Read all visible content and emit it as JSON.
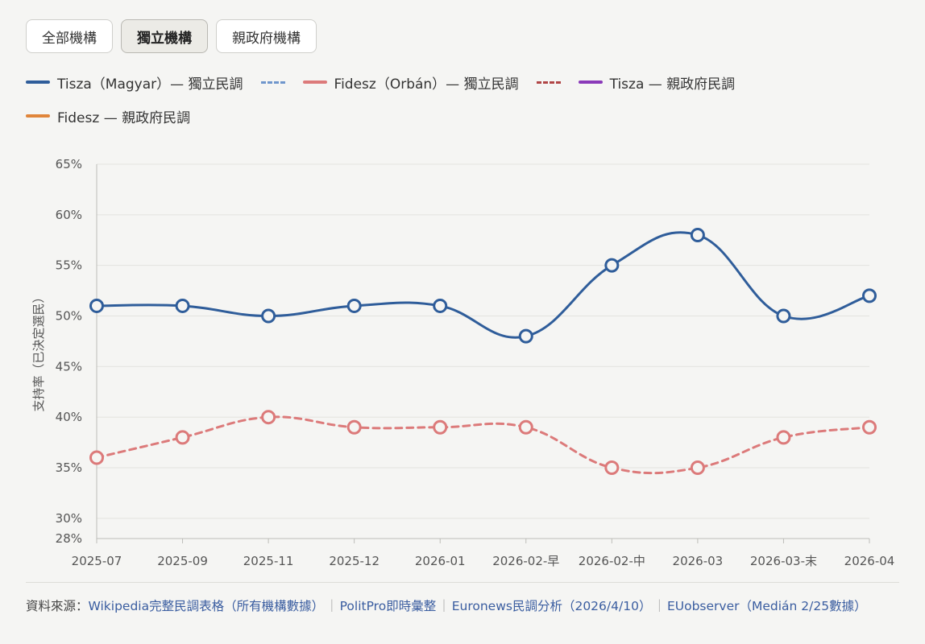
{
  "filters": {
    "all": "全部機構",
    "independent": "獨立機構",
    "pro_government": "親政府機構",
    "active": "independent"
  },
  "legend": [
    {
      "label": "Tisza（Magyar）— 獨立民調",
      "color": "#2f5d9a",
      "style": "solid"
    },
    {
      "label": "",
      "color": "#6f96cc",
      "style": "dashed"
    },
    {
      "label": "Fidesz（Orbán）— 獨立民調",
      "color": "#dc7a7a",
      "style": "solid"
    },
    {
      "label": "",
      "color": "#b04545",
      "style": "dashed"
    },
    {
      "label": "Tisza — 親政府民調",
      "color": "#8a3ab9",
      "style": "solid"
    },
    {
      "label": "Fidesz — 親政府民調",
      "color": "#e0853a",
      "style": "solid"
    }
  ],
  "chart_data": {
    "type": "line",
    "ylabel": "支持率（已決定選民）",
    "xlabel": "",
    "ylim": [
      28,
      65
    ],
    "yticks": [
      "65%",
      "60%",
      "55%",
      "50%",
      "45%",
      "40%",
      "35%",
      "30%",
      "28%"
    ],
    "ytick_values": [
      65,
      60,
      55,
      50,
      45,
      40,
      35,
      30,
      28
    ],
    "categories": [
      "2025-07",
      "2025-09",
      "2025-11",
      "2025-12",
      "2026-01",
      "2026-02-早",
      "2026-02-中",
      "2026-03",
      "2026-03-末",
      "2026-04"
    ],
    "grid": true,
    "series": [
      {
        "name": "Tisza（Magyar）— 獨立民調",
        "color": "#2f5d9a",
        "style": "solid",
        "values": [
          51,
          51,
          50,
          51,
          51,
          48,
          55,
          58,
          50,
          52
        ]
      },
      {
        "name": "Fidesz（Orbán）— 獨立民調",
        "color": "#dc7a7a",
        "style": "dashed",
        "values": [
          36,
          38,
          40,
          39,
          39,
          39,
          35,
          35,
          38,
          39
        ]
      }
    ]
  },
  "sources": {
    "prefix": "資料來源：",
    "links": [
      "Wikipedia完整民調表格（所有機構數據）",
      "PolitPro即時彙整",
      "Euronews民調分析（2026/4/10）",
      "EUobserver（Medián 2/25數據）"
    ],
    "separator": "｜"
  }
}
